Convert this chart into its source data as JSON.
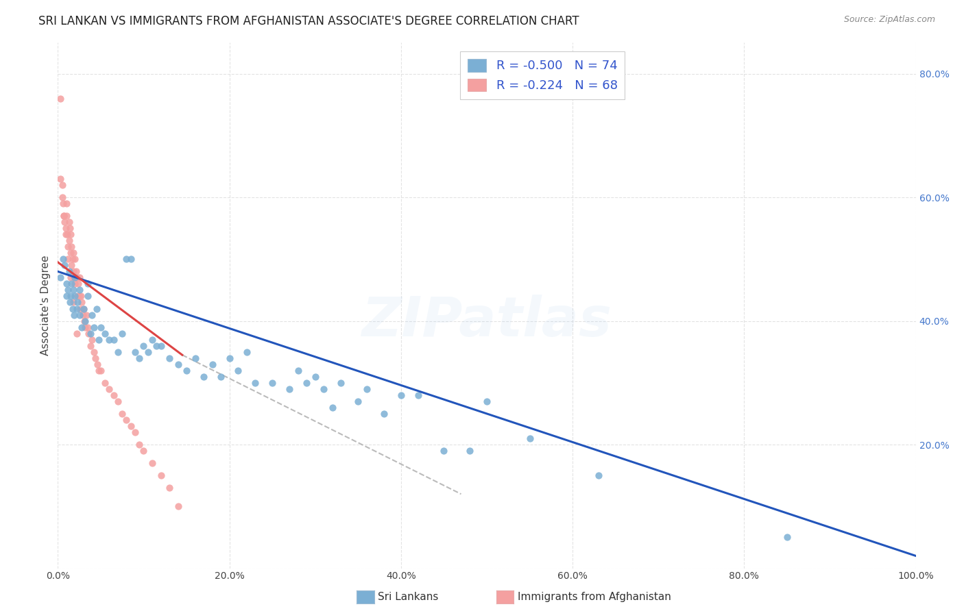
{
  "title": "SRI LANKAN VS IMMIGRANTS FROM AFGHANISTAN ASSOCIATE'S DEGREE CORRELATION CHART",
  "source": "Source: ZipAtlas.com",
  "ylabel": "Associate's Degree",
  "legend_label1": "Sri Lankans",
  "legend_label2": "Immigrants from Afghanistan",
  "R1": -0.5,
  "N1": 74,
  "R2": -0.224,
  "N2": 68,
  "color_blue": "#7BAFD4",
  "color_pink": "#F4A0A0",
  "color_blue_line": "#2255BB",
  "color_pink_line": "#DD4444",
  "color_gray_line": "#BBBBBB",
  "xlim": [
    0,
    1.0
  ],
  "ylim": [
    0,
    0.85
  ],
  "xticks": [
    0.0,
    0.2,
    0.4,
    0.6,
    0.8,
    1.0
  ],
  "yticks": [
    0.0,
    0.2,
    0.4,
    0.6,
    0.8
  ],
  "xticklabels": [
    "0.0%",
    "20.0%",
    "40.0%",
    "60.0%",
    "80.0%",
    "100.0%"
  ],
  "yticklabels_right": [
    "",
    "20.0%",
    "40.0%",
    "60.0%",
    "80.0%"
  ],
  "watermark": "ZIPatlas",
  "bg_color": "#FFFFFF",
  "grid_color": "#DDDDDD",
  "title_fontsize": 12,
  "axis_label_fontsize": 11,
  "tick_fontsize": 10,
  "watermark_alpha": 0.13,
  "blue_line_x": [
    0.0,
    1.0
  ],
  "blue_line_y": [
    0.48,
    0.02
  ],
  "pink_line_x": [
    0.0,
    0.145
  ],
  "pink_line_y": [
    0.495,
    0.345
  ],
  "gray_line_x": [
    0.145,
    0.47
  ],
  "gray_line_y": [
    0.345,
    0.12
  ],
  "sri_lankan_x": [
    0.003,
    0.006,
    0.008,
    0.01,
    0.01,
    0.012,
    0.013,
    0.014,
    0.015,
    0.016,
    0.017,
    0.018,
    0.019,
    0.02,
    0.02,
    0.022,
    0.023,
    0.025,
    0.025,
    0.028,
    0.03,
    0.032,
    0.035,
    0.035,
    0.038,
    0.04,
    0.042,
    0.045,
    0.048,
    0.05,
    0.055,
    0.06,
    0.065,
    0.07,
    0.075,
    0.08,
    0.085,
    0.09,
    0.095,
    0.1,
    0.105,
    0.11,
    0.115,
    0.12,
    0.13,
    0.14,
    0.15,
    0.16,
    0.17,
    0.18,
    0.19,
    0.2,
    0.21,
    0.22,
    0.23,
    0.25,
    0.27,
    0.28,
    0.29,
    0.3,
    0.31,
    0.32,
    0.33,
    0.35,
    0.36,
    0.38,
    0.4,
    0.42,
    0.45,
    0.48,
    0.5,
    0.55,
    0.63,
    0.85
  ],
  "sri_lankan_y": [
    0.47,
    0.5,
    0.49,
    0.46,
    0.44,
    0.45,
    0.48,
    0.43,
    0.44,
    0.46,
    0.42,
    0.45,
    0.41,
    0.44,
    0.47,
    0.42,
    0.43,
    0.41,
    0.45,
    0.39,
    0.42,
    0.4,
    0.44,
    0.46,
    0.38,
    0.41,
    0.39,
    0.42,
    0.37,
    0.39,
    0.38,
    0.37,
    0.37,
    0.35,
    0.38,
    0.5,
    0.5,
    0.35,
    0.34,
    0.36,
    0.35,
    0.37,
    0.36,
    0.36,
    0.34,
    0.33,
    0.32,
    0.34,
    0.31,
    0.33,
    0.31,
    0.34,
    0.32,
    0.35,
    0.3,
    0.3,
    0.29,
    0.32,
    0.3,
    0.31,
    0.29,
    0.26,
    0.3,
    0.27,
    0.29,
    0.25,
    0.28,
    0.28,
    0.19,
    0.19,
    0.27,
    0.21,
    0.15,
    0.05
  ],
  "afghanistan_x": [
    0.003,
    0.005,
    0.006,
    0.007,
    0.008,
    0.009,
    0.01,
    0.01,
    0.011,
    0.012,
    0.013,
    0.013,
    0.014,
    0.015,
    0.015,
    0.016,
    0.016,
    0.017,
    0.018,
    0.018,
    0.019,
    0.02,
    0.02,
    0.021,
    0.022,
    0.023,
    0.024,
    0.025,
    0.025,
    0.026,
    0.027,
    0.028,
    0.029,
    0.03,
    0.031,
    0.032,
    0.033,
    0.035,
    0.036,
    0.038,
    0.04,
    0.042,
    0.044,
    0.046,
    0.048,
    0.05,
    0.055,
    0.06,
    0.065,
    0.07,
    0.075,
    0.08,
    0.085,
    0.09,
    0.095,
    0.1,
    0.11,
    0.12,
    0.13,
    0.14,
    0.003,
    0.005,
    0.007,
    0.009,
    0.012,
    0.015,
    0.018,
    0.022
  ],
  "afghanistan_y": [
    0.76,
    0.62,
    0.59,
    0.57,
    0.56,
    0.55,
    0.57,
    0.59,
    0.54,
    0.52,
    0.56,
    0.53,
    0.55,
    0.51,
    0.54,
    0.52,
    0.49,
    0.5,
    0.51,
    0.48,
    0.47,
    0.5,
    0.46,
    0.48,
    0.47,
    0.44,
    0.46,
    0.44,
    0.47,
    0.42,
    0.44,
    0.43,
    0.41,
    0.42,
    0.4,
    0.39,
    0.41,
    0.39,
    0.38,
    0.36,
    0.37,
    0.35,
    0.34,
    0.33,
    0.32,
    0.32,
    0.3,
    0.29,
    0.28,
    0.27,
    0.25,
    0.24,
    0.23,
    0.22,
    0.2,
    0.19,
    0.17,
    0.15,
    0.13,
    0.1,
    0.63,
    0.6,
    0.57,
    0.54,
    0.5,
    0.47,
    0.43,
    0.38
  ]
}
